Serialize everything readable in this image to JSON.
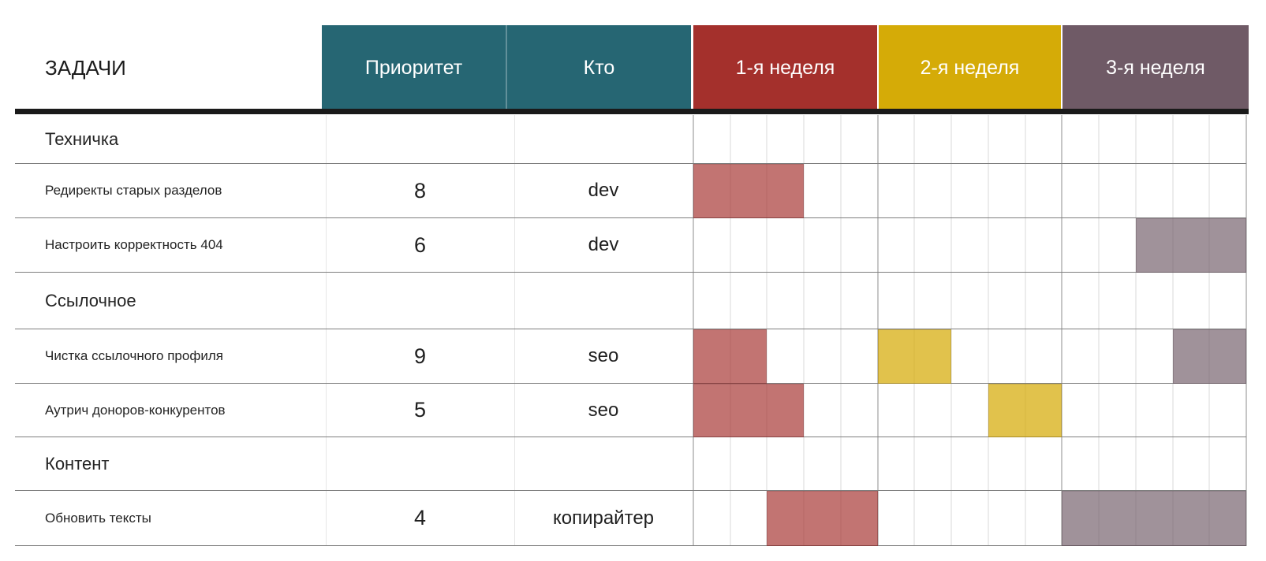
{
  "header": {
    "tasks_label": "ЗАДАЧИ",
    "priority_label": "Приоритет",
    "who_label": "Кто",
    "weeks": [
      {
        "label": "1-я неделя",
        "color": "#a4302c"
      },
      {
        "label": "2-я неделя",
        "color": "#d5ab07"
      },
      {
        "label": "3-я неделя",
        "color": "#6f5a66"
      }
    ]
  },
  "colors": {
    "header_teal": "#266673",
    "week1_red": "#a4302c",
    "week2_yellow": "#d5ab07",
    "week3_purple": "#6f5a66",
    "bar_red": "#c27370",
    "bar_yellow": "#e1c24c",
    "bar_purple": "#a1939b",
    "header_underline": "#1a1a1a"
  },
  "chart_data": {
    "type": "gantt",
    "columns": [
      "ЗАДАЧИ",
      "Приоритет",
      "Кто",
      "1-я неделя",
      "2-я неделя",
      "3-я неделя"
    ],
    "weeks": [
      "1-я неделя",
      "2-я неделя",
      "3-я неделя"
    ],
    "days_per_week": 5,
    "total_days": 15,
    "rows": [
      {
        "kind": "section",
        "label": "Техничка"
      },
      {
        "kind": "task",
        "label": "Редиректы старых разделов",
        "priority": "8",
        "who": "dev",
        "bars": [
          {
            "color": "red",
            "day_start": 1,
            "day_end": 3
          }
        ]
      },
      {
        "kind": "task",
        "label": "Настроить корректность 404",
        "priority": "6",
        "who": "dev",
        "bars": [
          {
            "color": "purple",
            "day_start": 13,
            "day_end": 15
          }
        ]
      },
      {
        "kind": "section",
        "label": "Ссылочное"
      },
      {
        "kind": "task",
        "label": "Чистка ссылочного профиля",
        "priority": "9",
        "who": "seo",
        "bars": [
          {
            "color": "red",
            "day_start": 1,
            "day_end": 2
          },
          {
            "color": "yellow",
            "day_start": 6,
            "day_end": 7
          },
          {
            "color": "purple",
            "day_start": 14,
            "day_end": 15
          }
        ]
      },
      {
        "kind": "task",
        "label": "Аутрич доноров-конкурентов",
        "priority": "5",
        "who": "seo",
        "bars": [
          {
            "color": "red",
            "day_start": 1,
            "day_end": 3
          },
          {
            "color": "yellow",
            "day_start": 9,
            "day_end": 10
          }
        ]
      },
      {
        "kind": "section",
        "label": "Контент"
      },
      {
        "kind": "task",
        "label": "Обновить тексты",
        "priority": "4",
        "who": "копирайтер",
        "bars": [
          {
            "color": "red",
            "day_start": 3,
            "day_end": 5
          },
          {
            "color": "purple",
            "day_start": 11,
            "day_end": 15
          }
        ]
      }
    ]
  }
}
